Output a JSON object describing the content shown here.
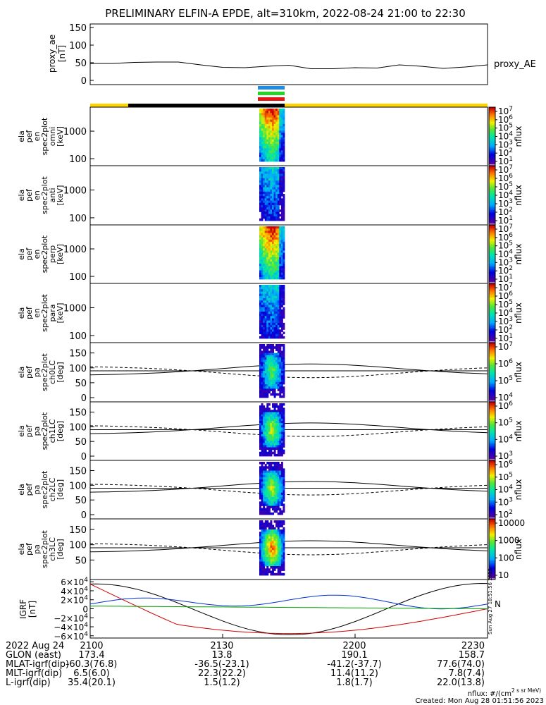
{
  "title": "PRELIMINARY ELFIN-A EPDE, alt=310km, 2022-08-24 21:00 to 22:30",
  "ae_panel": {
    "ylabel": "proxy_ae\n[nT]",
    "yticks": [
      "150",
      "100",
      "50",
      "0"
    ],
    "legend": "proxy_AE"
  },
  "panels": [
    {
      "ylabel": [
        "ela",
        "pef",
        "en",
        "spec2plot",
        "omni",
        "[keV]"
      ],
      "yticks": [
        "1000",
        "100"
      ],
      "cb_label": "nflux",
      "cb_ticks": [
        "10^7",
        "10^6",
        "10^5",
        "10^4",
        "10^3",
        "10^2",
        "10^1"
      ]
    },
    {
      "ylabel": [
        "ela",
        "pef",
        "en",
        "spec2plot",
        "anti",
        "[keV]"
      ],
      "yticks": [
        "1000",
        "100"
      ],
      "cb_label": "nflux",
      "cb_ticks": [
        "10^7",
        "10^6",
        "10^5",
        "10^4",
        "10^3",
        "10^2",
        "10^1"
      ]
    },
    {
      "ylabel": [
        "ela",
        "pef",
        "en",
        "spec2plot",
        "perp",
        "[keV]"
      ],
      "yticks": [
        "1000",
        "100"
      ],
      "cb_label": "nflux",
      "cb_ticks": [
        "10^7",
        "10^6",
        "10^5",
        "10^4",
        "10^3",
        "10^2",
        "10^1"
      ]
    },
    {
      "ylabel": [
        "ela",
        "pef",
        "en",
        "spec2plot",
        "para",
        "[keV]"
      ],
      "yticks": [
        "1000",
        "100"
      ],
      "cb_label": "nflux",
      "cb_ticks": [
        "10^7",
        "10^6",
        "10^5",
        "10^4",
        "10^3",
        "10^2",
        "10^1"
      ]
    },
    {
      "ylabel": [
        "ela",
        "pef",
        "pa",
        "spec2plot",
        "ch0LC",
        "[deg]"
      ],
      "yticks": [
        "150",
        "100",
        "50",
        "0"
      ],
      "cb_label": "nflux",
      "cb_ticks": [
        "10^7",
        "10^6",
        "10^5",
        "10^4"
      ]
    },
    {
      "ylabel": [
        "ela",
        "pef",
        "pa",
        "spec2plot",
        "ch1LC",
        "[deg]"
      ],
      "yticks": [
        "150",
        "100",
        "50",
        "0"
      ],
      "cb_label": "nflux",
      "cb_ticks": [
        "10^6",
        "10^5",
        "10^4",
        "10^3"
      ]
    },
    {
      "ylabel": [
        "ela",
        "pef",
        "pa",
        "spec2plot",
        "ch2LC",
        "[deg]"
      ],
      "yticks": [
        "150",
        "100",
        "50",
        "0"
      ],
      "cb_label": "nflux",
      "cb_ticks": [
        "10^6",
        "10^5",
        "10^4",
        "10^3",
        "10^2"
      ]
    },
    {
      "ylabel": [
        "ela",
        "pef",
        "pa",
        "spec2plot",
        "ch3LC",
        "[deg]"
      ],
      "yticks": [
        "150",
        "100",
        "50"
      ],
      "cb_label": "nflux",
      "cb_ticks": [
        "10000",
        "1000",
        "100",
        "10"
      ]
    }
  ],
  "igrf_panel": {
    "ylabel": "IGRF\n[nT]",
    "yticks": [
      "6×10^4",
      "4×10^4",
      "2×10^4",
      "0",
      "−2×10^4",
      "−4×10^4",
      "−6×10^4"
    ],
    "legend_n": "N",
    "stamp": "Sun Aug 27 18:51:56 2023"
  },
  "footer": {
    "rows": [
      {
        "label": "2022 Aug 24",
        "vals": [
          "2100",
          "2130",
          "2200",
          "2230"
        ]
      },
      {
        "label": "GLON (east)",
        "vals": [
          "173.4",
          "13.8",
          "190.1",
          "158.7"
        ]
      },
      {
        "label": "MLAT-igrf(dip)",
        "vals": [
          "-60.3(76.8)",
          "-36.5(-23.1)",
          "-41.2(-37.7)",
          "77.6(74.0)"
        ]
      },
      {
        "label": "MLT-igrf(dip)",
        "vals": [
          "6.5(6.0)",
          "22.3(22.2)",
          "11.4(11.2)",
          "7.8(7.4)"
        ]
      },
      {
        "label": "L-igrf(dip)",
        "vals": [
          "35.4(20.1)",
          "1.5(1.2)",
          "1.8(1.7)",
          "22.0(13.8)"
        ]
      }
    ],
    "units": "nflux: #/(cm^2 s sr MeV)",
    "created": "Created: Mon Aug 28 01:51:56 2023"
  },
  "colors": {
    "sci_bar": "#ffd200",
    "black_bar": "#000000",
    "bar_blue": "#1e8ce6",
    "bar_green": "#28d228",
    "bar_red": "#e61414"
  },
  "chart_data": {
    "type": "line",
    "title": "PRELIMINARY ELFIN-A EPDE, alt=310km, 2022-08-24 21:00 to 22:30",
    "x": [
      "2100",
      "2110",
      "2120",
      "2130",
      "2140",
      "2150",
      "2200",
      "2210",
      "2220",
      "2230"
    ],
    "series": [
      {
        "name": "proxy_AE",
        "values": [
          48,
          50,
          38,
          37,
          30,
          32,
          42,
          35,
          37,
          42
        ]
      },
      {
        "name": "N",
        "values": [
          0,
          16000,
          30000,
          14000,
          18000,
          12000,
          18000,
          28000,
          22000,
          1000
        ]
      }
    ],
    "ylim_ae": [
      0,
      160
    ],
    "ylim_igrf": [
      -65000,
      65000
    ],
    "pass_interval": [
      "2136",
      "2140"
    ]
  }
}
